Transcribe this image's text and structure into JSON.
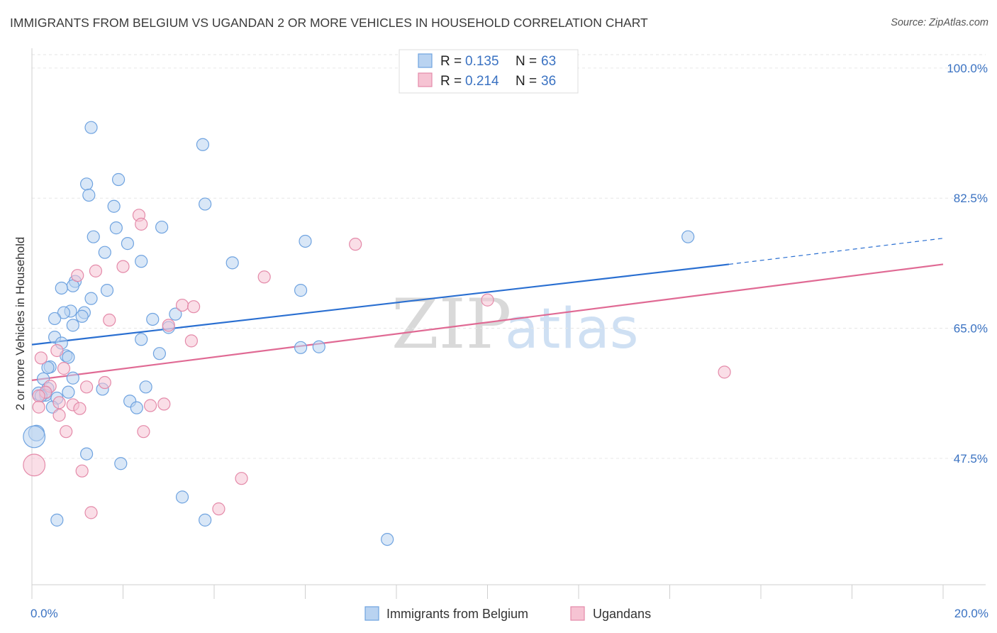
{
  "title": "IMMIGRANTS FROM BELGIUM VS UGANDAN 2 OR MORE VEHICLES IN HOUSEHOLD CORRELATION CHART",
  "source": "Source: ZipAtlas.com",
  "watermark": {
    "part1": "ZIP",
    "part2": "atlas"
  },
  "chart_data": {
    "type": "scatter",
    "title": "IMMIGRANTS FROM BELGIUM VS UGANDAN 2 OR MORE VEHICLES IN HOUSEHOLD CORRELATION CHART",
    "xlabel": "",
    "ylabel": "2 or more Vehicles in Household",
    "xlim": [
      0,
      20
    ],
    "ylim": [
      30.5,
      101.8
    ],
    "x_tick_labels": [
      {
        "value": 0,
        "label": "0.0%"
      },
      {
        "value": 20,
        "label": "20.0%"
      }
    ],
    "x_minor_ticks": [
      2,
      4,
      6,
      8,
      10,
      12,
      14,
      16,
      18
    ],
    "y_ticks": [
      {
        "value": 100.0,
        "label": "100.0%"
      },
      {
        "value": 82.5,
        "label": "82.5%"
      },
      {
        "value": 65.0,
        "label": "65.0%"
      },
      {
        "value": 47.5,
        "label": "47.5%"
      }
    ],
    "grid": true,
    "legend": [
      {
        "series": "Immigrants from Belgium",
        "r_label": "R =",
        "r_value": "0.135",
        "n_label": "N =",
        "n_value": "63"
      },
      {
        "series": "Ugandans",
        "r_label": "R =",
        "r_value": "0.214",
        "n_label": "N =",
        "n_value": "36"
      }
    ],
    "series": [
      {
        "name": "Immigrants from Belgium",
        "color": "#6fa3e0",
        "fill": "#b9d3f1",
        "trend": {
          "x0": 0,
          "y0": 62.8,
          "x1": 15.3,
          "y1": 73.6,
          "dash_to_x": 20,
          "dash_to_y": 77.1
        },
        "points": [
          {
            "x": 1.3,
            "y": 92.0,
            "s": 1
          },
          {
            "x": 3.75,
            "y": 89.7,
            "s": 1
          },
          {
            "x": 1.9,
            "y": 85.0,
            "s": 1
          },
          {
            "x": 1.2,
            "y": 84.4,
            "s": 1
          },
          {
            "x": 1.25,
            "y": 82.9,
            "s": 1
          },
          {
            "x": 3.8,
            "y": 81.7,
            "s": 1
          },
          {
            "x": 1.8,
            "y": 81.4,
            "s": 1
          },
          {
            "x": 1.85,
            "y": 78.5,
            "s": 1
          },
          {
            "x": 2.85,
            "y": 78.6,
            "s": 1
          },
          {
            "x": 1.35,
            "y": 77.3,
            "s": 1
          },
          {
            "x": 2.1,
            "y": 76.4,
            "s": 1
          },
          {
            "x": 6.0,
            "y": 76.7,
            "s": 1
          },
          {
            "x": 14.4,
            "y": 77.3,
            "s": 1
          },
          {
            "x": 1.6,
            "y": 75.2,
            "s": 1
          },
          {
            "x": 2.4,
            "y": 74.0,
            "s": 1
          },
          {
            "x": 4.4,
            "y": 73.8,
            "s": 1
          },
          {
            "x": 0.95,
            "y": 71.3,
            "s": 1
          },
          {
            "x": 0.9,
            "y": 70.7,
            "s": 1
          },
          {
            "x": 0.65,
            "y": 70.4,
            "s": 1
          },
          {
            "x": 1.65,
            "y": 70.1,
            "s": 1
          },
          {
            "x": 5.9,
            "y": 70.1,
            "s": 1
          },
          {
            "x": 1.3,
            "y": 69.0,
            "s": 1
          },
          {
            "x": 0.85,
            "y": 67.3,
            "s": 1
          },
          {
            "x": 0.7,
            "y": 67.1,
            "s": 1
          },
          {
            "x": 1.15,
            "y": 67.1,
            "s": 1
          },
          {
            "x": 3.15,
            "y": 66.9,
            "s": 1
          },
          {
            "x": 1.1,
            "y": 66.6,
            "s": 1
          },
          {
            "x": 0.5,
            "y": 66.3,
            "s": 1
          },
          {
            "x": 2.65,
            "y": 66.2,
            "s": 1
          },
          {
            "x": 0.9,
            "y": 65.4,
            "s": 1
          },
          {
            "x": 3.0,
            "y": 65.1,
            "s": 1
          },
          {
            "x": 0.5,
            "y": 63.8,
            "s": 1
          },
          {
            "x": 2.4,
            "y": 63.5,
            "s": 1
          },
          {
            "x": 0.65,
            "y": 63.0,
            "s": 1
          },
          {
            "x": 5.9,
            "y": 62.4,
            "s": 1
          },
          {
            "x": 6.3,
            "y": 62.5,
            "s": 1
          },
          {
            "x": 2.8,
            "y": 61.6,
            "s": 1
          },
          {
            "x": 0.75,
            "y": 61.3,
            "s": 1
          },
          {
            "x": 0.8,
            "y": 61.1,
            "s": 1
          },
          {
            "x": 0.4,
            "y": 59.8,
            "s": 1
          },
          {
            "x": 0.35,
            "y": 59.7,
            "s": 1
          },
          {
            "x": 0.25,
            "y": 58.2,
            "s": 1
          },
          {
            "x": 0.9,
            "y": 58.3,
            "s": 1
          },
          {
            "x": 2.5,
            "y": 57.1,
            "s": 1
          },
          {
            "x": 0.35,
            "y": 56.9,
            "s": 1
          },
          {
            "x": 1.55,
            "y": 56.8,
            "s": 1
          },
          {
            "x": 0.8,
            "y": 56.4,
            "s": 1
          },
          {
            "x": 0.3,
            "y": 56.3,
            "s": 1
          },
          {
            "x": 0.15,
            "y": 56.2,
            "s": 1.1
          },
          {
            "x": 0.3,
            "y": 56.0,
            "s": 1
          },
          {
            "x": 0.2,
            "y": 55.9,
            "s": 1
          },
          {
            "x": 0.55,
            "y": 55.6,
            "s": 1
          },
          {
            "x": 2.15,
            "y": 55.2,
            "s": 1
          },
          {
            "x": 0.45,
            "y": 54.4,
            "s": 1
          },
          {
            "x": 2.3,
            "y": 54.3,
            "s": 1
          },
          {
            "x": 0.1,
            "y": 50.9,
            "s": 1.3
          },
          {
            "x": 0.05,
            "y": 50.4,
            "s": 1.8
          },
          {
            "x": 1.2,
            "y": 48.1,
            "s": 1
          },
          {
            "x": 1.95,
            "y": 46.8,
            "s": 1
          },
          {
            "x": 3.3,
            "y": 42.3,
            "s": 1
          },
          {
            "x": 0.55,
            "y": 39.2,
            "s": 1
          },
          {
            "x": 3.8,
            "y": 39.2,
            "s": 1
          },
          {
            "x": 7.8,
            "y": 36.6,
            "s": 1
          }
        ]
      },
      {
        "name": "Ugandans",
        "color": "#e48aa9",
        "fill": "#f6c3d3",
        "trend": {
          "x0": 0,
          "y0": 58.0,
          "x1": 20,
          "y1": 73.6
        },
        "points": [
          {
            "x": 2.35,
            "y": 80.2,
            "s": 1
          },
          {
            "x": 2.4,
            "y": 79.0,
            "s": 1
          },
          {
            "x": 7.1,
            "y": 76.3,
            "s": 1
          },
          {
            "x": 2.0,
            "y": 73.3,
            "s": 1
          },
          {
            "x": 1.4,
            "y": 72.7,
            "s": 1
          },
          {
            "x": 1.0,
            "y": 72.1,
            "s": 1
          },
          {
            "x": 5.1,
            "y": 71.9,
            "s": 1
          },
          {
            "x": 10.0,
            "y": 68.8,
            "s": 1
          },
          {
            "x": 3.3,
            "y": 68.1,
            "s": 1
          },
          {
            "x": 3.55,
            "y": 67.9,
            "s": 1
          },
          {
            "x": 1.7,
            "y": 66.1,
            "s": 1
          },
          {
            "x": 3.0,
            "y": 65.4,
            "s": 1
          },
          {
            "x": 3.5,
            "y": 63.3,
            "s": 1
          },
          {
            "x": 0.55,
            "y": 62.0,
            "s": 1
          },
          {
            "x": 0.2,
            "y": 61.0,
            "s": 1
          },
          {
            "x": 0.7,
            "y": 59.6,
            "s": 1
          },
          {
            "x": 15.2,
            "y": 59.1,
            "s": 1
          },
          {
            "x": 1.6,
            "y": 57.7,
            "s": 1
          },
          {
            "x": 0.4,
            "y": 57.2,
            "s": 1
          },
          {
            "x": 1.2,
            "y": 57.1,
            "s": 1
          },
          {
            "x": 0.3,
            "y": 56.4,
            "s": 1
          },
          {
            "x": 0.15,
            "y": 55.9,
            "s": 1
          },
          {
            "x": 0.6,
            "y": 55.0,
            "s": 1
          },
          {
            "x": 2.9,
            "y": 54.8,
            "s": 1
          },
          {
            "x": 0.9,
            "y": 54.7,
            "s": 1
          },
          {
            "x": 2.6,
            "y": 54.6,
            "s": 1
          },
          {
            "x": 0.15,
            "y": 54.4,
            "s": 1
          },
          {
            "x": 1.05,
            "y": 54.2,
            "s": 1
          },
          {
            "x": 0.6,
            "y": 53.3,
            "s": 1
          },
          {
            "x": 0.75,
            "y": 51.1,
            "s": 1
          },
          {
            "x": 2.45,
            "y": 51.1,
            "s": 1
          },
          {
            "x": 0.05,
            "y": 46.6,
            "s": 1.8
          },
          {
            "x": 1.1,
            "y": 45.8,
            "s": 1
          },
          {
            "x": 4.6,
            "y": 44.8,
            "s": 1
          },
          {
            "x": 4.1,
            "y": 40.7,
            "s": 1
          },
          {
            "x": 1.3,
            "y": 40.2,
            "s": 1
          }
        ]
      }
    ]
  }
}
